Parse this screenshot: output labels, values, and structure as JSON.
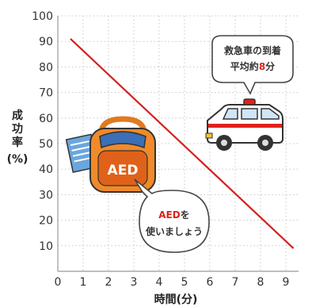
{
  "chart_data": {
    "type": "line",
    "title": "",
    "xlabel": "時間(分)",
    "ylabel_lines": [
      "成",
      "功",
      "率",
      "(%)"
    ],
    "xlim": [
      0,
      9.5
    ],
    "ylim": [
      0,
      100
    ],
    "x_ticks": [
      0,
      1,
      2,
      3,
      4,
      5,
      6,
      7,
      8,
      9
    ],
    "y_ticks": [
      10,
      20,
      30,
      40,
      50,
      60,
      70,
      80,
      90,
      100
    ],
    "grid": true,
    "series": [
      {
        "color": "#d42020",
        "x": [
          0.5,
          9.3
        ],
        "y": [
          91,
          9
        ]
      }
    ],
    "annotations": {
      "ambulance_bubble": {
        "line1": "救急車の到着",
        "line2_prefix": "平均約",
        "line2_number": "8",
        "line2_suffix": "分"
      },
      "aed_bubble": {
        "line1_red": "AED",
        "line1_rest": "を",
        "line2": "使いましょう"
      },
      "aed_device_label": "AED"
    }
  }
}
